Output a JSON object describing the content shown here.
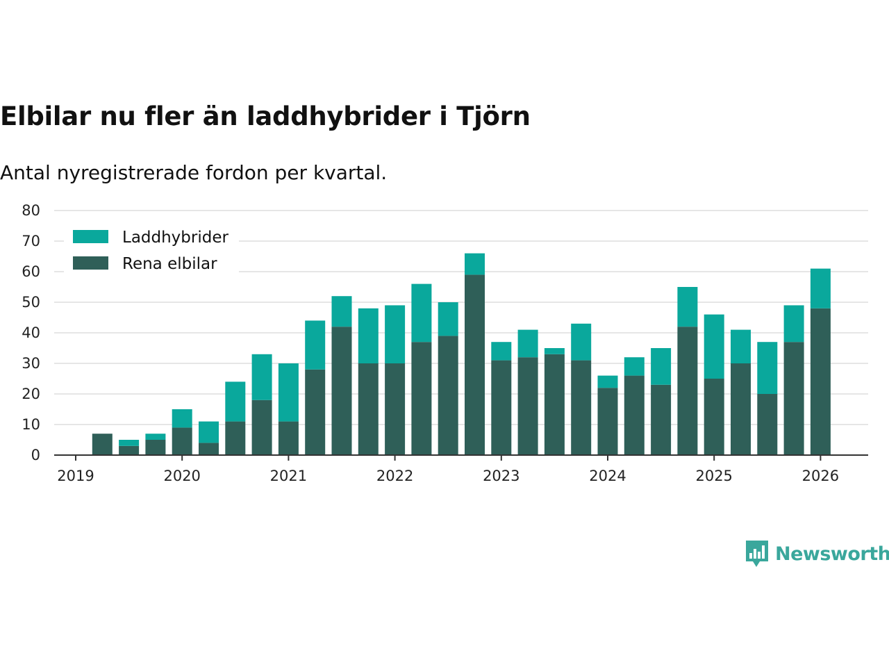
{
  "title": "Elbilar nu fler än laddhybrider i Tjörn",
  "subtitle": "Antal nyregistrerade fordon per kvartal.",
  "brand": {
    "name": "Newsworthy",
    "icon": "newsworthy-logo-icon"
  },
  "colors": {
    "laddhybrider": "#0aa89c",
    "rena_elbilar": "#2f5f58",
    "grid": "#dddddd",
    "axis": "#333333"
  },
  "chart_data": {
    "type": "bar",
    "stacked": true,
    "title": "Elbilar nu fler än laddhybrider i Tjörn",
    "subtitle": "Antal nyregistrerade fordon per kvartal.",
    "xlabel": "",
    "ylabel": "",
    "ylim": [
      0,
      80
    ],
    "yticks": [
      0,
      10,
      20,
      30,
      40,
      50,
      60,
      70,
      80
    ],
    "xticks": [
      "2019",
      "2020",
      "2021",
      "2022",
      "2023",
      "2024",
      "2025",
      "2026"
    ],
    "legend_position": "top-left",
    "categories": [
      "2019 Q1",
      "2019 Q2",
      "2019 Q3",
      "2019 Q4",
      "2020 Q1",
      "2020 Q2",
      "2020 Q3",
      "2020 Q4",
      "2021 Q1",
      "2021 Q2",
      "2021 Q3",
      "2021 Q4",
      "2022 Q1",
      "2022 Q2",
      "2022 Q3",
      "2022 Q4",
      "2023 Q1",
      "2023 Q2",
      "2023 Q3",
      "2023 Q4",
      "2024 Q1",
      "2024 Q2",
      "2024 Q3",
      "2024 Q4",
      "2025 Q1",
      "2025 Q2",
      "2025 Q3",
      "2025 Q4"
    ],
    "series": [
      {
        "name": "Rena elbilar",
        "color": "#2f5f58",
        "values": [
          7,
          3,
          5,
          9,
          4,
          11,
          18,
          11,
          28,
          42,
          30,
          30,
          37,
          39,
          59,
          31,
          32,
          33,
          31,
          22,
          26,
          23,
          42,
          25,
          30,
          20,
          37,
          48
        ]
      },
      {
        "name": "Laddhybrider",
        "color": "#0aa89c",
        "values": [
          0,
          2,
          2,
          6,
          7,
          13,
          15,
          19,
          16,
          10,
          18,
          19,
          19,
          11,
          7,
          6,
          9,
          2,
          12,
          4,
          6,
          12,
          13,
          21,
          11,
          17,
          12,
          13
        ]
      }
    ]
  }
}
